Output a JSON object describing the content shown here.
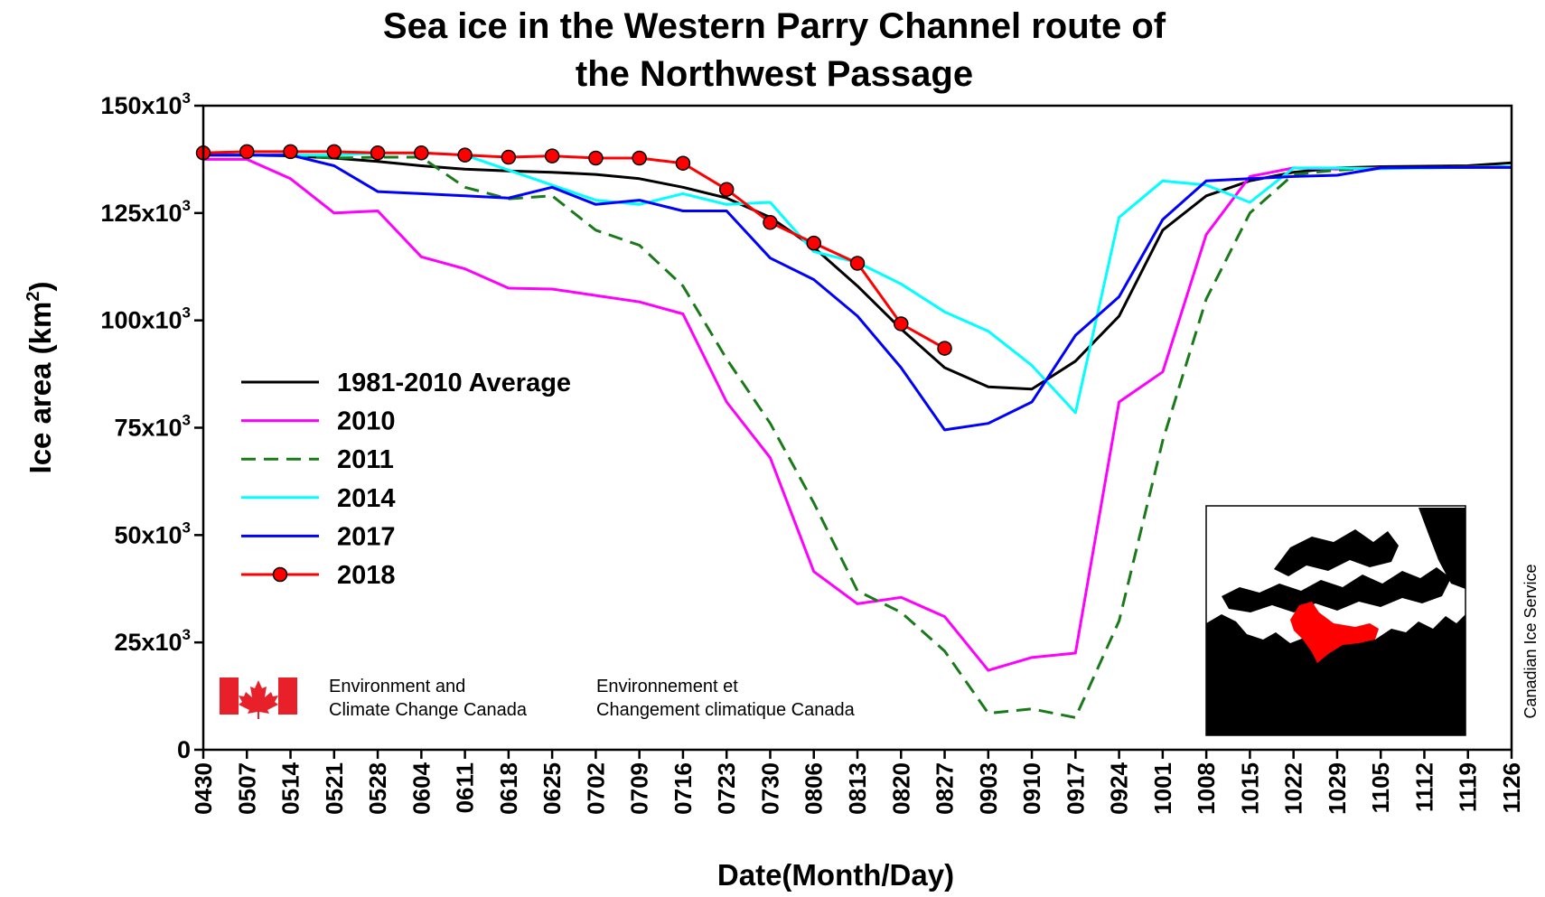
{
  "title_lines": [
    "Sea ice in the Western Parry Channel route of",
    "the Northwest Passage"
  ],
  "org": {
    "en_line1": "Environment and",
    "en_line2": "Climate Change Canada",
    "fr_line1": "Environnement et",
    "fr_line2": "Changement climatique Canada",
    "flag_color": "#e8202a"
  },
  "credit": "Canadian Ice Service",
  "chart_data": {
    "type": "line",
    "title": "Sea ice in the Western Parry Channel route of the Northwest Passage",
    "xlabel": "Date(Month/Day)",
    "ylabel": "Ice area (km2)",
    "ylabel_parts": [
      "Ice area (km",
      "2",
      ")"
    ],
    "ylim": [
      0,
      150000
    ],
    "yticks": [
      {
        "value": 0,
        "base": "0",
        "sup": ""
      },
      {
        "value": 25000,
        "base": "25x10",
        "sup": "3"
      },
      {
        "value": 50000,
        "base": "50x10",
        "sup": "3"
      },
      {
        "value": 75000,
        "base": "75x10",
        "sup": "3"
      },
      {
        "value": 100000,
        "base": "100x10",
        "sup": "3"
      },
      {
        "value": 125000,
        "base": "125x10",
        "sup": "3"
      },
      {
        "value": 150000,
        "base": "150x10",
        "sup": "3"
      }
    ],
    "x": [
      "0430",
      "0507",
      "0514",
      "0521",
      "0528",
      "0604",
      "0611",
      "0618",
      "0625",
      "0702",
      "0709",
      "0716",
      "0723",
      "0730",
      "0806",
      "0813",
      "0820",
      "0827",
      "0903",
      "0910",
      "0917",
      "0924",
      "1001",
      "1008",
      "1015",
      "1022",
      "1029",
      "1105",
      "1112",
      "1119",
      "1126"
    ],
    "legend_position": "left-middle",
    "grid": false,
    "series": [
      {
        "name": "1981-2010 Average",
        "color": "#000000",
        "dash": "",
        "markers": false,
        "values": [
          138500,
          138500,
          138300,
          137800,
          137000,
          136000,
          135200,
          134800,
          134500,
          134000,
          133000,
          131000,
          128500,
          124000,
          117000,
          108000,
          98000,
          89000,
          84500,
          84000,
          90500,
          101000,
          121000,
          129000,
          132500,
          134500,
          135500,
          135800,
          135900,
          136000,
          136700
        ]
      },
      {
        "name": "2010",
        "color": "#ff00ff",
        "dash": "",
        "markers": false,
        "values": [
          137500,
          137500,
          133000,
          125000,
          125500,
          114800,
          112000,
          107500,
          107300,
          105800,
          104300,
          101500,
          81000,
          68000,
          41500,
          34000,
          35500,
          31000,
          18500,
          21500,
          22500,
          81000,
          88000,
          120000,
          133500,
          135500,
          135200,
          135500,
          135500,
          135700,
          135800
        ]
      },
      {
        "name": "2011",
        "color": "#1a7a1a",
        "dash": "16,9",
        "markers": false,
        "values": [
          138500,
          138500,
          138500,
          137800,
          138000,
          138000,
          131000,
          128300,
          129000,
          121000,
          117500,
          108000,
          91000,
          76000,
          57500,
          37000,
          32000,
          23000,
          8500,
          9500,
          7500,
          30000,
          72000,
          105000,
          125000,
          134000,
          135000,
          135500,
          135600,
          135700,
          135800
        ]
      },
      {
        "name": "2014",
        "color": "#00ffff",
        "dash": "",
        "markers": false,
        "values": [
          138500,
          138500,
          138500,
          138500,
          139000,
          139000,
          138500,
          135000,
          131500,
          128000,
          127000,
          129500,
          127000,
          127500,
          116000,
          113500,
          108500,
          102000,
          97500,
          89500,
          78500,
          124000,
          132500,
          131500,
          127500,
          135500,
          135500,
          135300,
          135500,
          135600,
          135800
        ]
      },
      {
        "name": "2017",
        "color": "#0000ff",
        "dash": "",
        "markers": false,
        "values": [
          138500,
          138500,
          138500,
          136000,
          130000,
          129500,
          129000,
          128500,
          131000,
          127000,
          128000,
          125500,
          125500,
          114500,
          109500,
          101000,
          89000,
          74500,
          76000,
          81000,
          96500,
          105500,
          123500,
          132500,
          133000,
          133500,
          133800,
          135500,
          135600,
          135600,
          135600
        ]
      },
      {
        "name": "2018",
        "color": "#ff0000",
        "dash": "",
        "markers": true,
        "values": [
          139000,
          139300,
          139300,
          139300,
          139000,
          139000,
          138500,
          138000,
          138300,
          137800,
          137800,
          136600,
          130500,
          122800,
          118000,
          113300,
          99200,
          93500,
          null,
          null,
          null,
          null,
          null,
          null,
          null,
          null,
          null,
          null,
          null,
          null,
          null
        ]
      }
    ]
  }
}
